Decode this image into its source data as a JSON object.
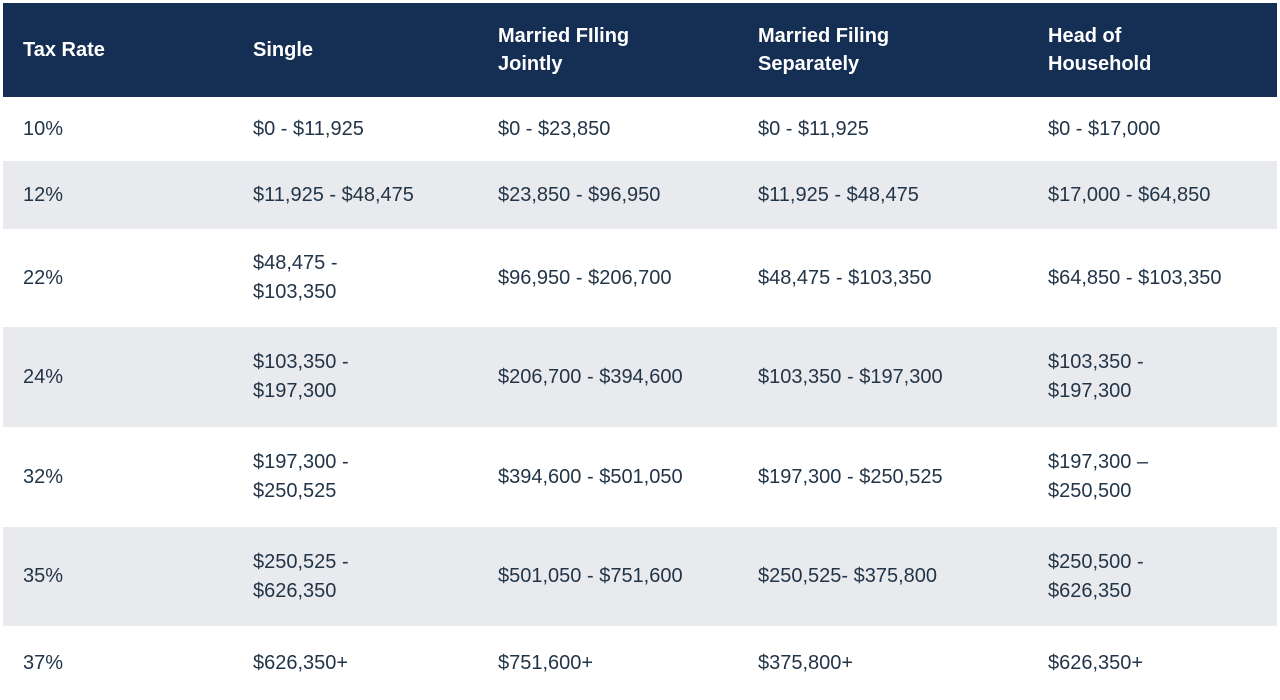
{
  "colors": {
    "header_bg": "#152e54",
    "header_text": "#ffffff",
    "row_bg": "#ffffff",
    "row_alt_bg": "#e9eaee",
    "body_text": "#223548"
  },
  "table": {
    "columns": [
      {
        "label": "Tax Rate"
      },
      {
        "label": "Single"
      },
      {
        "label": "Married FIling\nJointly"
      },
      {
        "label": "Married Filing\nSeparately"
      },
      {
        "label": "Head of\nHousehold"
      }
    ],
    "rows": [
      {
        "rate": "10%",
        "single": "$0 - $11,925",
        "married_jointly": "$0 - $23,850",
        "married_separately": "$0 - $11,925",
        "head_of_household": "$0 - $17,000"
      },
      {
        "rate": "12%",
        "single": "$11,925 - $48,475",
        "married_jointly": "$23,850 - $96,950",
        "married_separately": "$11,925 - $48,475",
        "head_of_household": "$17,000 - $64,850"
      },
      {
        "rate": "22%",
        "single": "$48,475 -\n$103,350",
        "married_jointly": "$96,950 - $206,700",
        "married_separately": "$48,475 - $103,350",
        "head_of_household": "$64,850 - $103,350"
      },
      {
        "rate": "24%",
        "single": "$103,350 -\n$197,300",
        "married_jointly": "$206,700 - $394,600",
        "married_separately": "$103,350 - $197,300",
        "head_of_household": "$103,350 -\n$197,300"
      },
      {
        "rate": "32%",
        "single": "$197,300 -\n$250,525",
        "married_jointly": "$394,600 - $501,050",
        "married_separately": "$197,300 - $250,525",
        "head_of_household": "$197,300 –\n$250,500"
      },
      {
        "rate": "35%",
        "single": "$250,525 -\n$626,350",
        "married_jointly": "$501,050 - $751,600",
        "married_separately": "$250,525- $375,800",
        "head_of_household": "$250,500 -\n$626,350"
      },
      {
        "rate": "37%",
        "single": "$626,350+",
        "married_jointly": "$751,600+",
        "married_separately": "$375,800+",
        "head_of_household": "$626,350+"
      }
    ]
  }
}
